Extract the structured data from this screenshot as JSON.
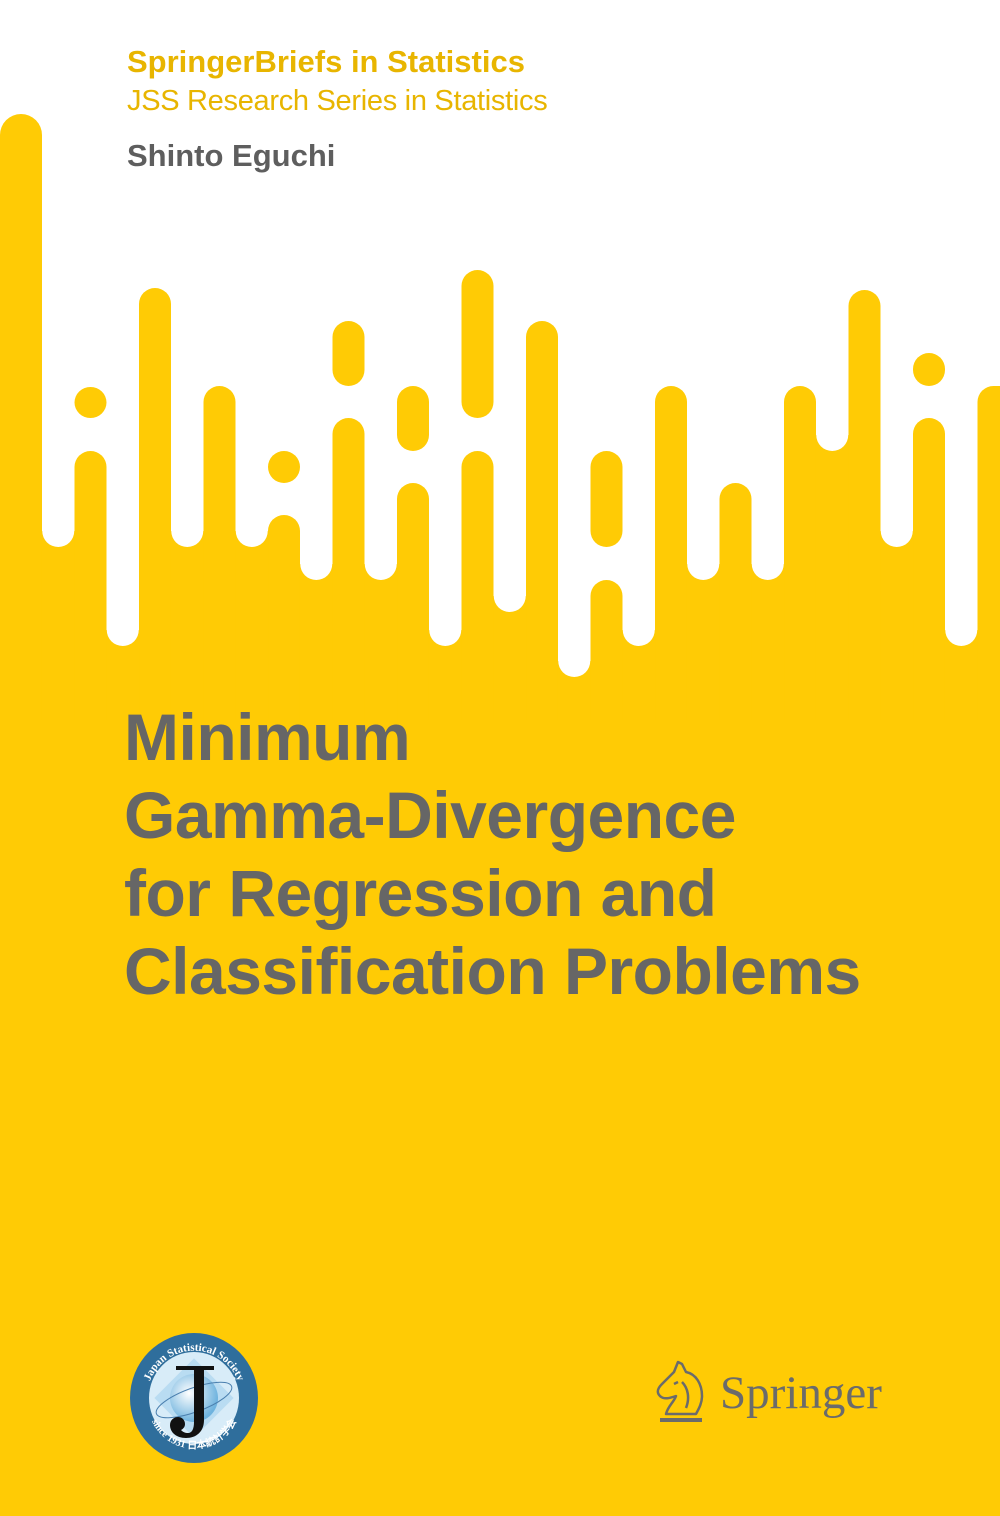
{
  "cover": {
    "series": "SpringerBriefs in Statistics",
    "subseries": "JSS Research Series in Statistics",
    "author": "Shinto Eguchi",
    "title_lines": [
      "Minimum",
      "Gamma-Divergence",
      "for Regression and",
      "Classification Problems"
    ]
  },
  "logos": {
    "jss": {
      "top_text": "Japan Statistical Society",
      "bottom_text": "since 1931  日本統計学会",
      "letter": "J"
    },
    "publisher": {
      "name": "Springer",
      "icon": "horse-head-icon"
    }
  },
  "colors": {
    "background": "#FFCB05",
    "series_text": "#E8B500",
    "title_text": "#666666",
    "jss_ring": "#2F6E9C"
  }
}
